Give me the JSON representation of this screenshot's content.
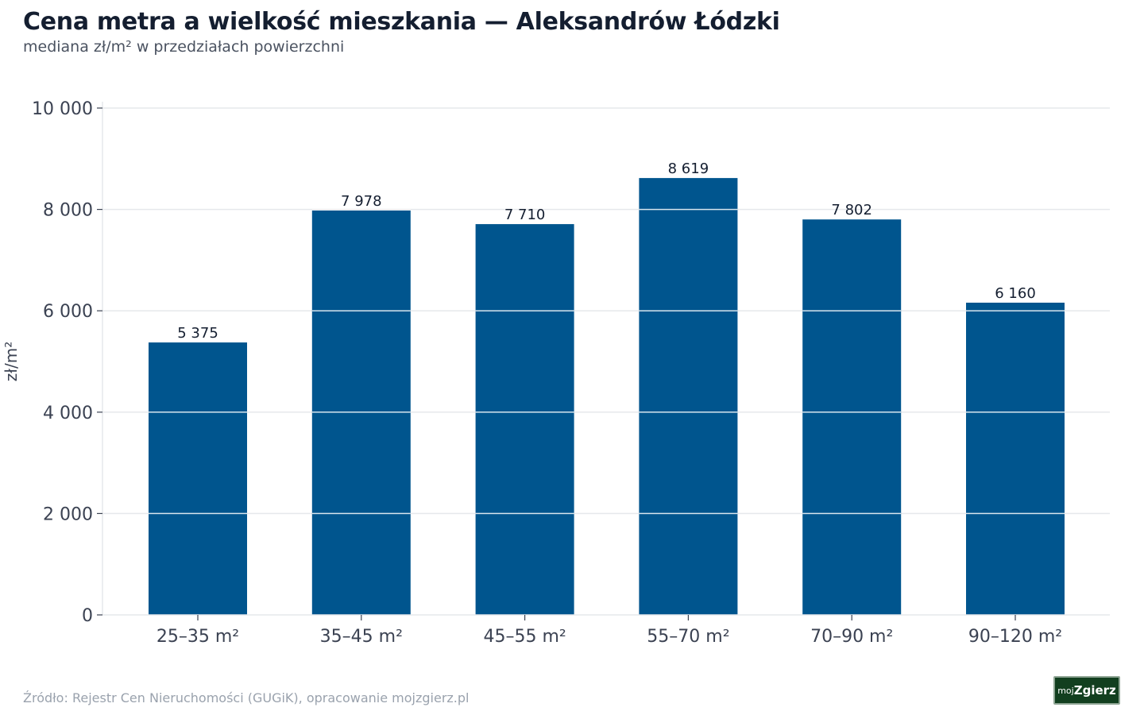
{
  "title": "Cena metra a wielkość mieszkania — Aleksandrów Łódzki",
  "subtitle": "mediana zł/m² w przedziałach powierzchni",
  "source": "Źródło: Rejestr Cen Nieruchomości (GUGiK), opracowanie mojzgierz.pl",
  "logo": {
    "part1": "moj",
    "part2": "Zgierz"
  },
  "colors": {
    "bar": "#00558e",
    "grid": "#e6e8eb",
    "text": "#141e30",
    "axis_text": "#3b4252"
  },
  "chart_data": {
    "type": "bar",
    "categories": [
      "25–35 m²",
      "35–45 m²",
      "45–55 m²",
      "55–70 m²",
      "70–90 m²",
      "90–120 m²"
    ],
    "values": [
      5375,
      7978,
      7710,
      8619,
      7802,
      6160
    ],
    "value_labels": [
      "5 375",
      "7 978",
      "7 710",
      "8 619",
      "7 802",
      "6 160"
    ],
    "ylabel": "zł/m²",
    "xlabel": "",
    "ylim": [
      0,
      10000
    ],
    "yticks": [
      0,
      2000,
      4000,
      6000,
      8000,
      10000
    ],
    "ytick_labels": [
      "0",
      "2 000",
      "4 000",
      "6 000",
      "8 000",
      "10 000"
    ],
    "grid": true,
    "legend": "none"
  }
}
